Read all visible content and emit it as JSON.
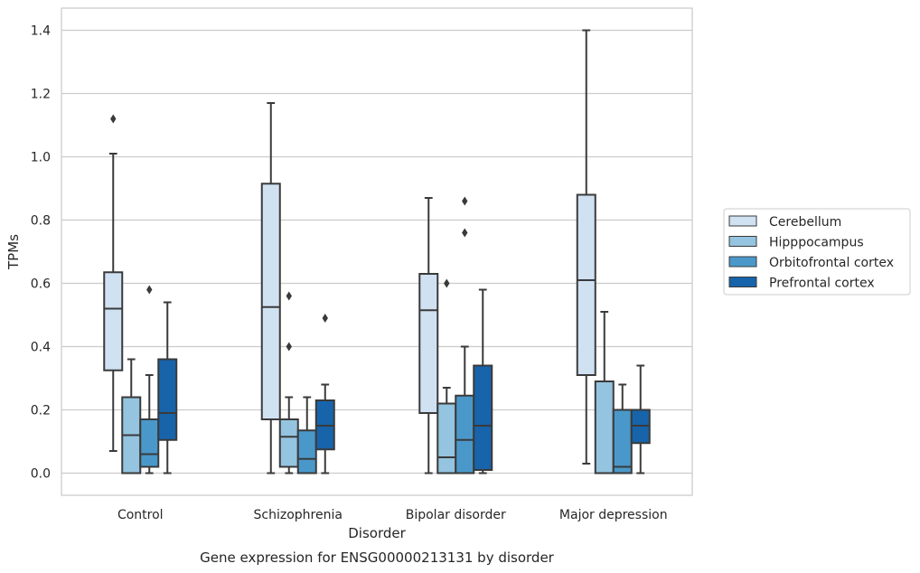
{
  "chart_data": {
    "type": "box",
    "caption": "Gene expression for ENSG00000213131 by disorder",
    "xlabel": "Disorder",
    "ylabel": "TPMs",
    "ylim": [
      -0.07,
      1.47
    ],
    "yticks": [
      0.0,
      0.2,
      0.4,
      0.6,
      0.8,
      1.0,
      1.2,
      1.4
    ],
    "ytick_labels": [
      "0.0",
      "0.2",
      "0.4",
      "0.6",
      "0.8",
      "1.0",
      "1.2",
      "1.4"
    ],
    "grid": "horizontal",
    "legend_placement": "right",
    "categories": [
      "Control",
      "Schizophrenia",
      "Bipolar disorder",
      "Major depression"
    ],
    "series": [
      {
        "name": "Cerebellum",
        "color": "#d0e1f2",
        "boxes": [
          {
            "whisker_low": 0.07,
            "q1": 0.325,
            "median": 0.52,
            "q3": 0.635,
            "whisker_high": 1.01,
            "outliers": [
              1.12
            ]
          },
          {
            "whisker_low": 0.0,
            "q1": 0.17,
            "median": 0.525,
            "q3": 0.915,
            "whisker_high": 1.17,
            "outliers": []
          },
          {
            "whisker_low": 0.0,
            "q1": 0.19,
            "median": 0.515,
            "q3": 0.63,
            "whisker_high": 0.87,
            "outliers": []
          },
          {
            "whisker_low": 0.03,
            "q1": 0.31,
            "median": 0.61,
            "q3": 0.88,
            "whisker_high": 1.4,
            "outliers": []
          }
        ]
      },
      {
        "name": "Hipppocampus",
        "color": "#94c4df",
        "boxes": [
          {
            "whisker_low": 0.0,
            "q1": 0.0,
            "median": 0.12,
            "q3": 0.24,
            "whisker_high": 0.36,
            "outliers": []
          },
          {
            "whisker_low": 0.0,
            "q1": 0.02,
            "median": 0.115,
            "q3": 0.17,
            "whisker_high": 0.24,
            "outliers": [
              0.4,
              0.56
            ]
          },
          {
            "whisker_low": 0.0,
            "q1": 0.0,
            "median": 0.05,
            "q3": 0.22,
            "whisker_high": 0.27,
            "outliers": [
              0.6
            ]
          },
          {
            "whisker_low": 0.0,
            "q1": 0.0,
            "median": 0.0,
            "q3": 0.29,
            "whisker_high": 0.51,
            "outliers": []
          }
        ]
      },
      {
        "name": "Orbitofrontal cortex",
        "color": "#4a98c9",
        "boxes": [
          {
            "whisker_low": 0.0,
            "q1": 0.02,
            "median": 0.06,
            "q3": 0.17,
            "whisker_high": 0.31,
            "outliers": [
              0.58
            ]
          },
          {
            "whisker_low": 0.0,
            "q1": 0.0,
            "median": 0.045,
            "q3": 0.135,
            "whisker_high": 0.24,
            "outliers": []
          },
          {
            "whisker_low": 0.0,
            "q1": 0.0,
            "median": 0.105,
            "q3": 0.245,
            "whisker_high": 0.4,
            "outliers": [
              0.76,
              0.86
            ]
          },
          {
            "whisker_low": 0.0,
            "q1": 0.0,
            "median": 0.02,
            "q3": 0.2,
            "whisker_high": 0.28,
            "outliers": []
          }
        ]
      },
      {
        "name": "Prefrontal cortex",
        "color": "#1764ab",
        "boxes": [
          {
            "whisker_low": 0.0,
            "q1": 0.105,
            "median": 0.19,
            "q3": 0.36,
            "whisker_high": 0.54,
            "outliers": []
          },
          {
            "whisker_low": 0.0,
            "q1": 0.075,
            "median": 0.15,
            "q3": 0.23,
            "whisker_high": 0.28,
            "outliers": [
              0.49
            ]
          },
          {
            "whisker_low": 0.0,
            "q1": 0.01,
            "median": 0.15,
            "q3": 0.34,
            "whisker_high": 0.58,
            "outliers": []
          },
          {
            "whisker_low": 0.0,
            "q1": 0.095,
            "median": 0.15,
            "q3": 0.2,
            "whisker_high": 0.34,
            "outliers": []
          }
        ]
      }
    ]
  }
}
